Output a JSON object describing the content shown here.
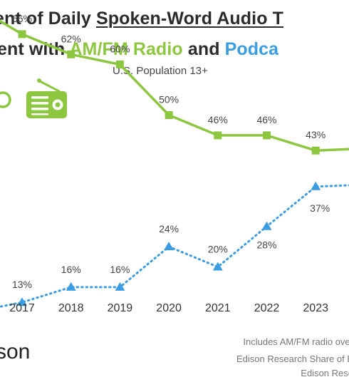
{
  "title": {
    "line1_a": "ent of Daily ",
    "line1_b": "Spoken-Word Audio T",
    "line2_a": "ent with ",
    "line2_b": "AM/FM Radio",
    "line2_c": " and ",
    "line2_d": "Podca"
  },
  "subtitle": "U.S. Population 13+",
  "footnotes": {
    "line1": "Includes AM/FM radio over",
    "line2": "Edison Research Share of E",
    "line3": "Edison Rese"
  },
  "brand": "son",
  "colors": {
    "radio": "#8dc63f",
    "podcast": "#3b9de1",
    "text": "#2b2b2b"
  },
  "icons": {
    "radio": "radio-icon",
    "left_partial": "partial-circle-icon"
  },
  "chart_data": {
    "type": "line",
    "x": [
      "2017",
      "2018",
      "2019",
      "2020",
      "2021",
      "2022",
      "2023"
    ],
    "series": [
      {
        "name": "AM/FM Radio",
        "values": [
          66,
          62,
          60,
          50,
          46,
          46,
          43
        ],
        "labels": [
          "66%",
          "62%",
          "60%",
          "50%",
          "46%",
          "46%",
          "43%"
        ]
      },
      {
        "name": "Podcasts",
        "values": [
          13,
          16,
          16,
          24,
          20,
          28,
          37
        ],
        "labels": [
          "13%",
          "16%",
          "16%",
          "24%",
          "20%",
          "28%",
          "37%"
        ]
      }
    ],
    "grid": false
  }
}
